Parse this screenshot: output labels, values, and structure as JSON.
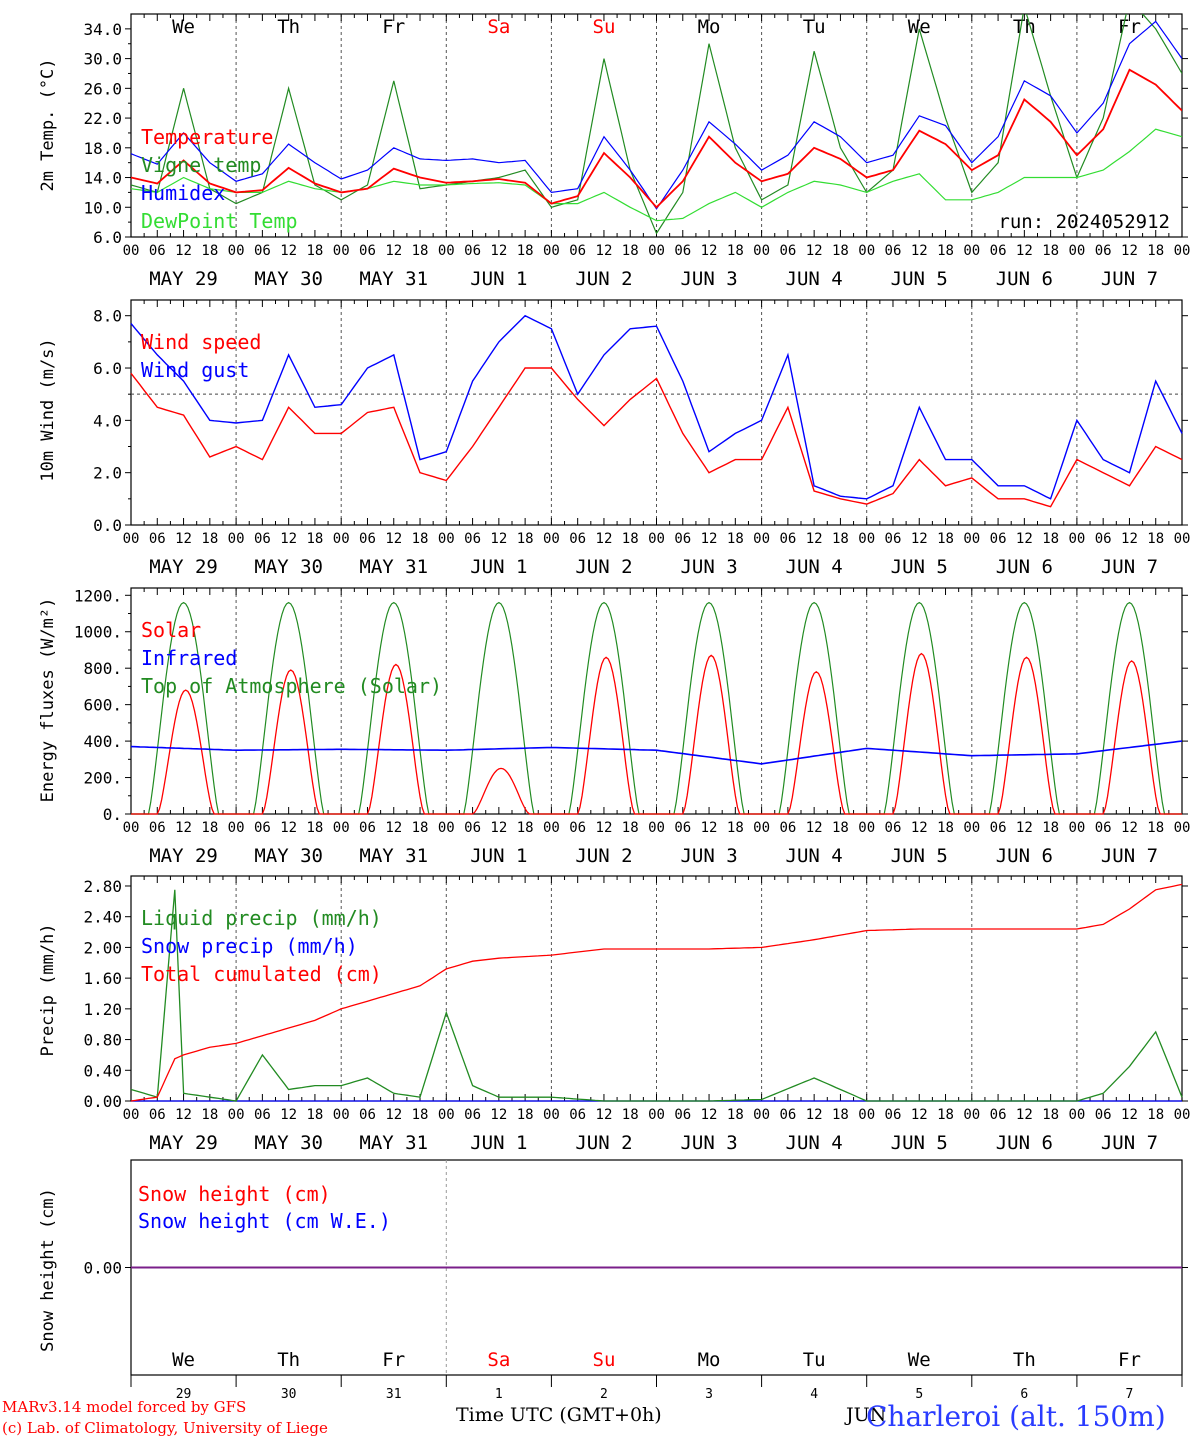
{
  "colors": {
    "red": "#ff0000",
    "green": "#228b22",
    "blue": "#0000ff",
    "lime": "#33dd33",
    "purple": "#7a1f8a",
    "axis": "#000000",
    "grid": "#555555"
  },
  "days": {
    "top": [
      "We",
      "Th",
      "Fr",
      "Sa",
      "Su",
      "Mo",
      "Tu",
      "We",
      "Th",
      "Fr"
    ],
    "top_colors": [
      "#000000",
      "#000000",
      "#000000",
      "#ff0000",
      "#ff0000",
      "#000000",
      "#000000",
      "#000000",
      "#000000",
      "#000000"
    ],
    "bottom": [
      "We",
      "Th",
      "Fr",
      "Sa",
      "Su",
      "Mo",
      "Tu",
      "We",
      "Th",
      "Fr"
    ],
    "bottom_colors": [
      "#000000",
      "#000000",
      "#000000",
      "#ff0000",
      "#ff0000",
      "#000000",
      "#000000",
      "#000000",
      "#000000",
      "#000000"
    ],
    "dates": [
      "MAY 29",
      "MAY 30",
      "MAY 31",
      "JUN  1",
      "JUN  2",
      "JUN  3",
      "JUN  4",
      "JUN  5",
      "JUN  6",
      "JUN  7"
    ],
    "daynums": [
      "29",
      "30",
      "31",
      "1",
      "2",
      "3",
      "4",
      "5",
      "6",
      "7"
    ],
    "hours": [
      "00",
      "06",
      "12",
      "18"
    ]
  },
  "run_label": "run: 2024052912",
  "footer": {
    "model": "MARv3.14 model forced by GFS",
    "lab": "(c) Lab. of Climatology, University of Liege",
    "xlabel": "Time UTC (GMT+0h)",
    "month": "JUN",
    "station": "Charleroi (alt. 150m)"
  },
  "chart_data": [
    {
      "type": "line",
      "ylabel": "2m Temp. (°C)",
      "ylim": [
        6.0,
        36.0
      ],
      "yticks": [
        "6.0",
        "10.0",
        "14.0",
        "18.0",
        "22.0",
        "26.0",
        "30.0",
        "34.0"
      ],
      "legend": [
        "Temperature",
        "Vigne temp",
        "Humidex",
        "DewPoint Temp"
      ],
      "legend_colors": [
        "#ff0000",
        "#228b22",
        "#0000ff",
        "#33dd33"
      ],
      "x_hours": [
        0,
        6,
        12,
        18,
        24,
        30,
        36,
        42,
        48,
        54,
        60,
        66,
        72,
        78,
        84,
        90,
        96,
        102,
        108,
        114,
        120,
        126,
        132,
        138,
        144,
        150,
        156,
        162,
        168,
        174,
        180,
        186,
        192,
        198,
        204,
        210,
        216,
        222,
        228,
        234,
        240
      ],
      "series": [
        {
          "name": "Temperature",
          "color": "#ff0000",
          "values": [
            14.0,
            13.2,
            16.3,
            13.2,
            12.0,
            12.3,
            15.3,
            13.2,
            12.0,
            12.5,
            15.2,
            14.0,
            13.3,
            13.5,
            13.8,
            13.3,
            10.5,
            11.5,
            17.3,
            14.0,
            10.0,
            13.5,
            19.5,
            16.0,
            13.5,
            14.5,
            18.0,
            16.5,
            14.0,
            15.0,
            20.3,
            18.5,
            15.0,
            17.0,
            24.5,
            21.5,
            17.0,
            20.5,
            28.5,
            26.5,
            23.0
          ]
        },
        {
          "name": "Vigne temp",
          "color": "#228b22",
          "values": [
            13.0,
            12.0,
            26.0,
            12.5,
            10.5,
            12.0,
            26.0,
            13.0,
            11.0,
            13.0,
            27.0,
            12.5,
            13.0,
            13.5,
            14.0,
            15.0,
            10.0,
            11.0,
            30.0,
            15.0,
            6.5,
            12.0,
            32.0,
            18.0,
            11.0,
            13.0,
            31.0,
            18.0,
            12.0,
            15.0,
            34.0,
            22.0,
            12.0,
            16.0,
            37.0,
            25.0,
            14.0,
            22.0,
            38.0,
            34.0,
            28.0
          ]
        },
        {
          "name": "Humidex",
          "color": "#0000ff",
          "values": [
            17.2,
            15.8,
            20.0,
            16.0,
            13.5,
            14.5,
            18.5,
            16.0,
            13.8,
            15.0,
            18.0,
            16.5,
            16.3,
            16.5,
            16.0,
            16.3,
            12.0,
            12.5,
            19.5,
            15.0,
            9.8,
            15.0,
            21.5,
            18.5,
            15.0,
            17.0,
            21.5,
            19.5,
            16.0,
            17.0,
            22.3,
            21.0,
            16.0,
            19.5,
            27.0,
            25.0,
            20.0,
            24.0,
            32.0,
            35.0,
            30.0
          ]
        },
        {
          "name": "DewPoint Temp",
          "color": "#33dd33",
          "values": [
            12.5,
            12.0,
            14.0,
            12.5,
            12.0,
            12.0,
            13.5,
            12.5,
            12.0,
            12.5,
            13.5,
            13.0,
            13.0,
            13.2,
            13.3,
            13.0,
            10.5,
            10.5,
            12.0,
            10.0,
            8.2,
            8.5,
            10.5,
            12.0,
            10.0,
            12.0,
            13.5,
            13.0,
            12.0,
            13.5,
            14.5,
            11.0,
            11.0,
            12.0,
            14.0,
            14.0,
            14.0,
            15.0,
            17.5,
            20.5,
            19.5
          ]
        }
      ]
    },
    {
      "type": "line",
      "ylabel": "10m Wind (m/s)",
      "ylim": [
        0,
        8.6
      ],
      "yticks": [
        "0.0",
        "2.0",
        "4.0",
        "6.0",
        "8.0"
      ],
      "reference_line": 5.0,
      "legend": [
        "Wind speed",
        "Wind gust"
      ],
      "legend_colors": [
        "#ff0000",
        "#0000ff"
      ],
      "x_hours": [
        0,
        6,
        12,
        18,
        24,
        30,
        36,
        42,
        48,
        54,
        60,
        66,
        72,
        78,
        84,
        90,
        96,
        102,
        108,
        114,
        120,
        126,
        132,
        138,
        144,
        150,
        156,
        162,
        168,
        174,
        180,
        186,
        192,
        198,
        204,
        210,
        216,
        222,
        228,
        234,
        240
      ],
      "series": [
        {
          "name": "Wind speed",
          "color": "#ff0000",
          "values": [
            5.8,
            4.5,
            4.2,
            2.6,
            3.0,
            2.5,
            4.5,
            3.5,
            3.5,
            4.3,
            4.5,
            2.0,
            1.7,
            3.0,
            4.5,
            6.0,
            6.0,
            4.8,
            3.8,
            4.8,
            5.6,
            3.5,
            2.0,
            2.5,
            2.5,
            4.5,
            1.3,
            1.0,
            0.8,
            1.2,
            2.5,
            1.5,
            1.8,
            1.0,
            1.0,
            0.7,
            2.5,
            2.0,
            1.5,
            3.0,
            2.5
          ]
        },
        {
          "name": "Wind gust",
          "color": "#0000ff",
          "values": [
            7.7,
            6.5,
            5.5,
            4.0,
            3.9,
            4.0,
            6.5,
            4.5,
            4.6,
            6.0,
            6.5,
            2.5,
            2.8,
            5.5,
            7.0,
            8.0,
            7.5,
            5.0,
            6.5,
            7.5,
            7.6,
            5.5,
            2.8,
            3.5,
            4.0,
            6.5,
            1.5,
            1.1,
            1.0,
            1.5,
            4.5,
            2.5,
            2.5,
            1.5,
            1.5,
            1.0,
            4.0,
            2.5,
            2.0,
            5.5,
            3.5
          ]
        }
      ]
    },
    {
      "type": "line",
      "ylabel": "Energy fluxes (W/m²)",
      "ylim": [
        0,
        1200
      ],
      "yticks": [
        "0.",
        "200.",
        "400.",
        "600.",
        "800.",
        "1000.",
        "1200."
      ],
      "legend": [
        "Solar",
        "Infrared",
        "Top of Atmosphere (Solar)"
      ],
      "legend_colors": [
        "#ff0000",
        "#0000ff",
        "#228b22"
      ],
      "toa_peak": 1160,
      "solar_day_peaks": [
        680,
        790,
        820,
        250,
        860,
        870,
        780,
        880,
        860,
        840
      ],
      "x_hours": [
        0,
        24,
        48,
        72,
        96,
        120,
        144,
        168,
        192,
        216,
        240
      ],
      "series": [
        {
          "name": "Infrared",
          "color": "#0000ff",
          "values": [
            370,
            350,
            355,
            350,
            365,
            350,
            275,
            360,
            320,
            330,
            400
          ]
        }
      ]
    },
    {
      "type": "line",
      "ylabel": "Precip (mm/h)",
      "ylim": [
        0,
        2.9
      ],
      "yticks": [
        "0.00",
        "0.40",
        "0.80",
        "1.20",
        "1.60",
        "2.00",
        "2.40",
        "2.80"
      ],
      "legend": [
        "Liquid precip (mm/h)",
        "Snow precip (mm/h)",
        "Total cumulated (cm)"
      ],
      "legend_colors": [
        "#228b22",
        "#0000ff",
        "#ff0000"
      ],
      "x_hours": [
        0,
        6,
        10,
        12,
        18,
        24,
        30,
        36,
        42,
        48,
        54,
        60,
        66,
        72,
        78,
        84,
        96,
        108,
        120,
        132,
        144,
        156,
        168,
        180,
        192,
        204,
        216,
        222,
        228,
        234,
        240
      ],
      "series": [
        {
          "name": "Liquid precip (mm/h)",
          "color": "#228b22",
          "values": [
            0.15,
            0.05,
            2.75,
            0.1,
            0.05,
            0.0,
            0.6,
            0.15,
            0.2,
            0.2,
            0.3,
            0.1,
            0.05,
            1.15,
            0.2,
            0.05,
            0.05,
            0.0,
            0.0,
            0.0,
            0.02,
            0.3,
            0.0,
            0.0,
            0.0,
            0.0,
            0.0,
            0.1,
            0.45,
            0.9,
            0.05
          ]
        },
        {
          "name": "Snow precip (mm/h)",
          "color": "#0000ff",
          "values": [
            0.0,
            0.0,
            0.0,
            0.0,
            0.0,
            0.0,
            0.0,
            0.0,
            0.0,
            0.0,
            0.0,
            0.0,
            0.0,
            0.0,
            0.0,
            0.0,
            0.0,
            0.0,
            0.0,
            0.0,
            0.0,
            0.0,
            0.0,
            0.0,
            0.0,
            0.0,
            0.0,
            0.0,
            0.0,
            0.0,
            0.0
          ]
        },
        {
          "name": "Total cumulated (cm)",
          "color": "#ff0000",
          "values": [
            0.0,
            0.05,
            0.55,
            0.6,
            0.7,
            0.75,
            0.85,
            0.95,
            1.05,
            1.2,
            1.3,
            1.4,
            1.5,
            1.72,
            1.82,
            1.86,
            1.9,
            1.98,
            1.98,
            1.98,
            2.0,
            2.1,
            2.22,
            2.24,
            2.24,
            2.24,
            2.24,
            2.3,
            2.5,
            2.75,
            2.82
          ]
        }
      ]
    },
    {
      "type": "line",
      "ylabel": "Snow height (cm)",
      "yticks": [
        "0.00"
      ],
      "legend": [
        "Snow height (cm)",
        "Snow height (cm W.E.)"
      ],
      "legend_colors": [
        "#ff0000",
        "#0000ff"
      ],
      "x_hours": [
        0,
        240
      ],
      "series": [
        {
          "name": "Snow height (cm)",
          "color": "#ff0000",
          "values": [
            0.0,
            0.0
          ]
        },
        {
          "name": "Snow height (cm W.E.)",
          "color": "#0000ff",
          "values": [
            0.0,
            0.0
          ]
        }
      ]
    }
  ]
}
